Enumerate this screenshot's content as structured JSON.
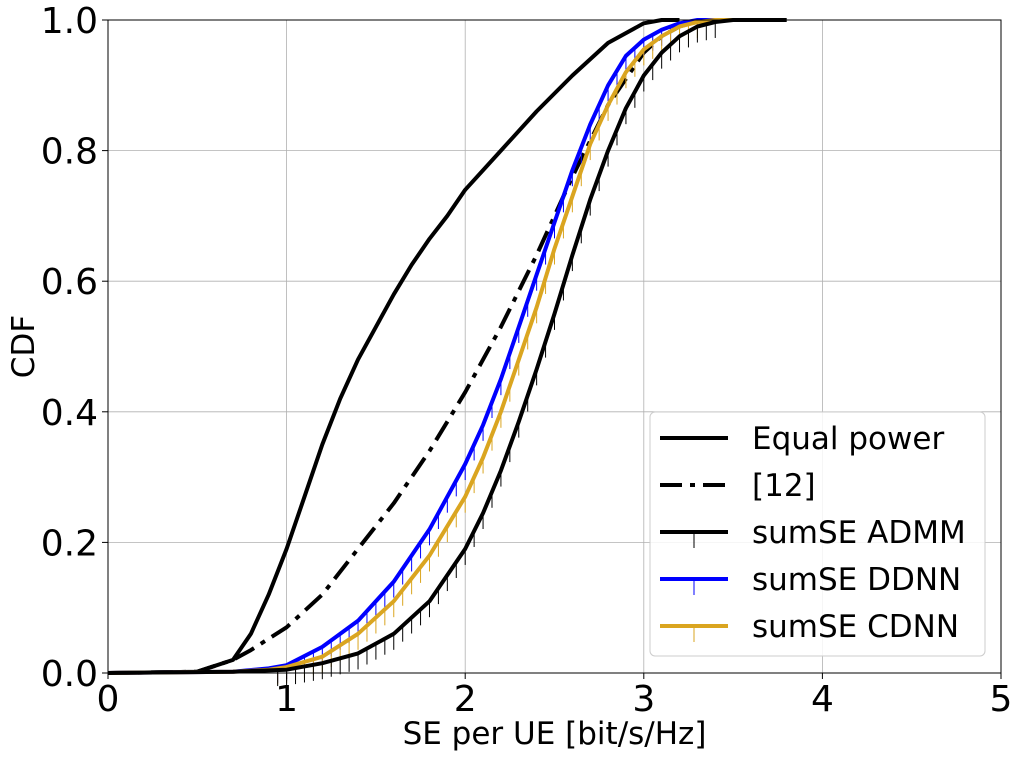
{
  "chart_data": {
    "type": "line",
    "title": "",
    "xlabel": "SE per UE [bit/s/Hz]",
    "ylabel": "CDF",
    "xlim": [
      0,
      5
    ],
    "ylim": [
      0,
      1
    ],
    "xticks": [
      "0",
      "1",
      "2",
      "3",
      "4",
      "5"
    ],
    "yticks": [
      "0.0",
      "0.2",
      "0.4",
      "0.6",
      "0.8",
      "1.0"
    ],
    "grid": true,
    "legend_position": "lower-right",
    "series": [
      {
        "name": "Equal power",
        "color": "#000000",
        "style": "solid",
        "marker": "none",
        "x": [
          0.0,
          0.5,
          0.7,
          0.8,
          0.9,
          1.0,
          1.1,
          1.2,
          1.3,
          1.4,
          1.5,
          1.6,
          1.7,
          1.8,
          1.9,
          2.0,
          2.2,
          2.4,
          2.6,
          2.8,
          3.0,
          3.1,
          3.2
        ],
        "y": [
          0.0,
          0.002,
          0.02,
          0.06,
          0.12,
          0.19,
          0.27,
          0.35,
          0.42,
          0.48,
          0.53,
          0.58,
          0.625,
          0.665,
          0.7,
          0.74,
          0.8,
          0.86,
          0.915,
          0.965,
          0.995,
          1.0,
          1.0
        ]
      },
      {
        "name": "[12]",
        "color": "#000000",
        "style": "dashdot",
        "marker": "none",
        "x": [
          0.0,
          0.5,
          0.7,
          0.8,
          1.0,
          1.2,
          1.4,
          1.6,
          1.8,
          2.0,
          2.2,
          2.4,
          2.6,
          2.8,
          3.0,
          3.1,
          3.2,
          3.3,
          3.4
        ],
        "y": [
          0.0,
          0.002,
          0.02,
          0.035,
          0.07,
          0.12,
          0.19,
          0.26,
          0.34,
          0.43,
          0.53,
          0.64,
          0.76,
          0.87,
          0.95,
          0.975,
          0.99,
          0.998,
          1.0
        ]
      },
      {
        "name": "sumSE ADMM",
        "color": "#000000",
        "style": "solid",
        "marker": "tick",
        "x": [
          0.0,
          0.7,
          1.0,
          1.2,
          1.4,
          1.6,
          1.8,
          2.0,
          2.1,
          2.2,
          2.3,
          2.4,
          2.5,
          2.6,
          2.7,
          2.8,
          2.9,
          3.0,
          3.1,
          3.2,
          3.3,
          3.4,
          3.5,
          3.6,
          3.8
        ],
        "y": [
          0.0,
          0.002,
          0.005,
          0.015,
          0.03,
          0.06,
          0.11,
          0.19,
          0.245,
          0.31,
          0.385,
          0.465,
          0.55,
          0.64,
          0.725,
          0.8,
          0.865,
          0.915,
          0.95,
          0.975,
          0.99,
          0.997,
          1.0,
          1.0,
          1.0
        ]
      },
      {
        "name": "sumSE DDNN",
        "color": "#0000ff",
        "style": "solid",
        "marker": "tick",
        "x": [
          0.0,
          0.7,
          0.9,
          1.0,
          1.2,
          1.4,
          1.6,
          1.8,
          2.0,
          2.1,
          2.2,
          2.3,
          2.4,
          2.5,
          2.6,
          2.7,
          2.8,
          2.9,
          3.0,
          3.1,
          3.2,
          3.3,
          3.4
        ],
        "y": [
          0.0,
          0.002,
          0.007,
          0.012,
          0.04,
          0.08,
          0.14,
          0.22,
          0.32,
          0.38,
          0.45,
          0.53,
          0.61,
          0.69,
          0.77,
          0.84,
          0.9,
          0.945,
          0.97,
          0.985,
          0.995,
          1.0,
          1.0
        ]
      },
      {
        "name": "sumSE CDNN",
        "color": "#daa520",
        "style": "solid",
        "marker": "tick",
        "x": [
          0.0,
          0.7,
          0.9,
          1.0,
          1.2,
          1.4,
          1.6,
          1.8,
          2.0,
          2.1,
          2.2,
          2.3,
          2.4,
          2.5,
          2.6,
          2.7,
          2.8,
          2.9,
          3.0,
          3.1,
          3.2,
          3.3,
          3.4,
          3.5
        ],
        "y": [
          0.0,
          0.002,
          0.005,
          0.009,
          0.025,
          0.06,
          0.11,
          0.18,
          0.27,
          0.33,
          0.4,
          0.48,
          0.56,
          0.65,
          0.73,
          0.81,
          0.87,
          0.92,
          0.955,
          0.975,
          0.99,
          0.997,
          1.0,
          1.0
        ]
      }
    ]
  }
}
